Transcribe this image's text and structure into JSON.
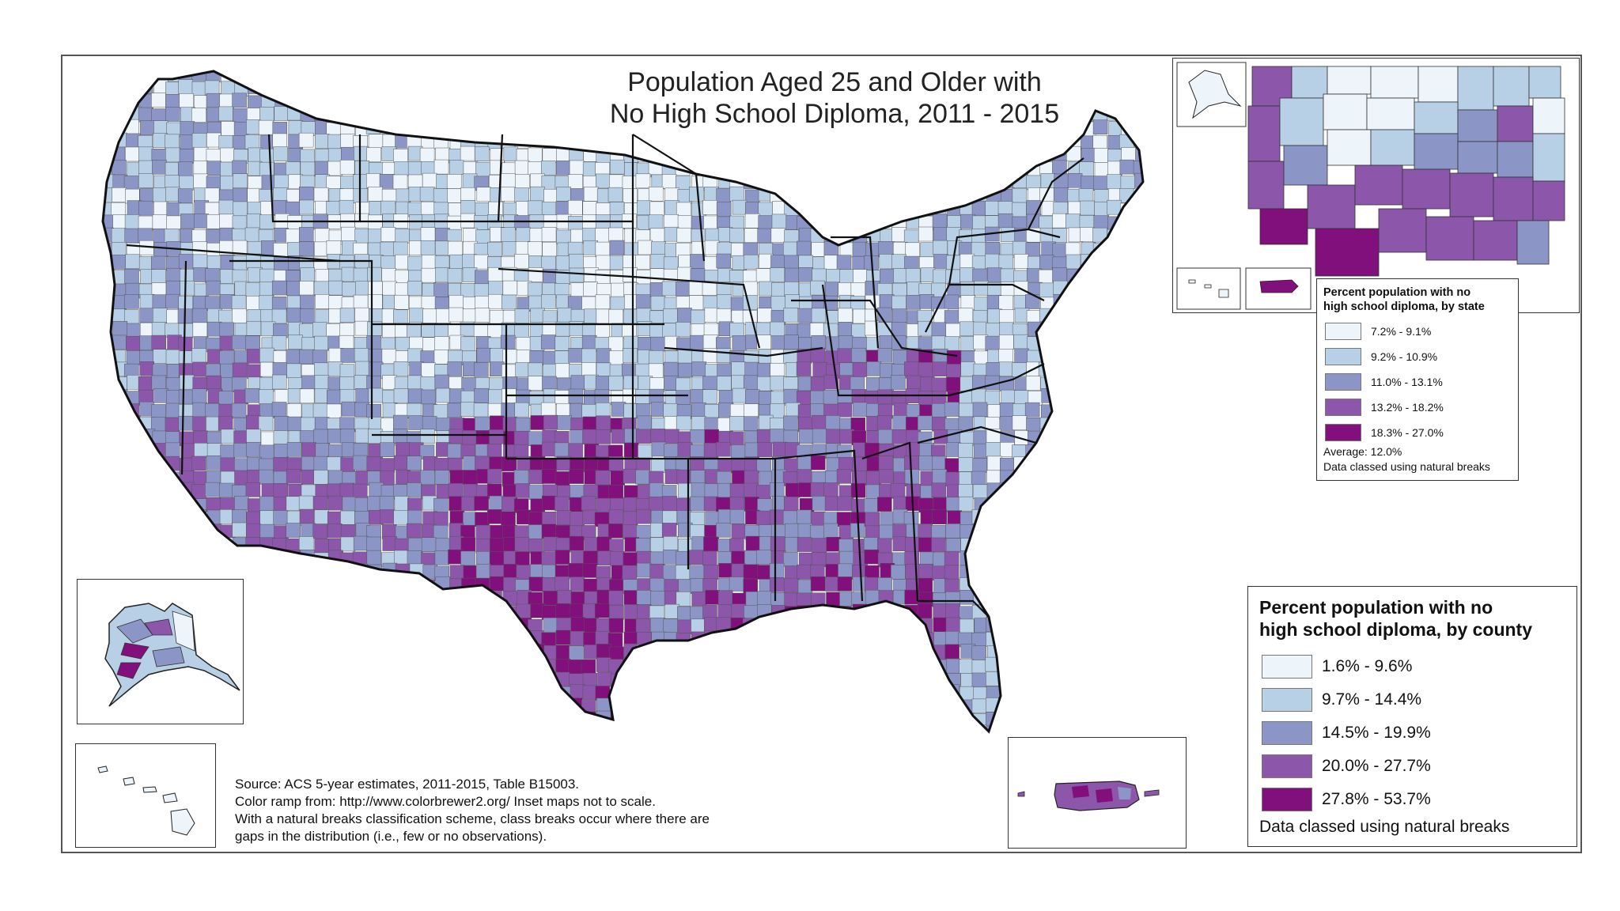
{
  "title": {
    "line1": "Population Aged 25 and Older with",
    "line2": "No High School Diploma, 2011 - 2015"
  },
  "colors": {
    "class1": "#eef5fa",
    "class2": "#b8d0e6",
    "class3": "#8c96c6",
    "class4": "#8c56ab",
    "class5": "#810f7c",
    "outline": "#222222"
  },
  "state_legend": {
    "title_line1": "Percent population with no",
    "title_line2": "high school diploma, by state",
    "classes": [
      {
        "label": "7.2% - 9.1%"
      },
      {
        "label": "9.2% - 10.9%"
      },
      {
        "label": "11.0% - 13.1%"
      },
      {
        "label": "13.2% - 18.2%"
      },
      {
        "label": "18.3% - 27.0%"
      }
    ],
    "average": "Average: 12.0%",
    "note": "Data classed using natural breaks"
  },
  "county_legend": {
    "title_line1": "Percent  population with no",
    "title_line2": "high school diploma, by county",
    "classes": [
      {
        "label": "1.6% - 9.6%"
      },
      {
        "label": "9.7% - 14.4%"
      },
      {
        "label": "14.5% - 19.9%"
      },
      {
        "label": "20.0% - 27.7%"
      },
      {
        "label": "27.8% - 53.7%"
      }
    ],
    "note": "Data classed using natural breaks"
  },
  "source": {
    "line1": "Source: ACS 5-year estimates, 2011-2015, Table B15003.",
    "line2": "Color ramp from: http://www.colorbrewer2.org/  Inset maps not to scale.",
    "line3": "With a natural breaks classification scheme, class breaks occur where there are",
    "line4": "gaps in the distribution (i.e., few or no observations)."
  }
}
